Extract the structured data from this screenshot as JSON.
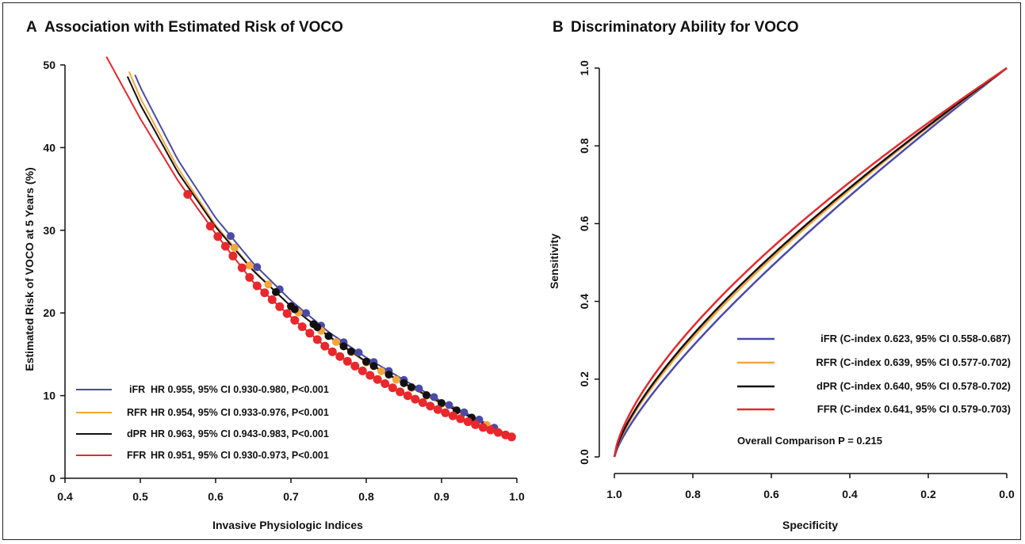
{
  "colors": {
    "iFR": "#4a4aa8",
    "RFR": "#f5a53a",
    "dPR": "#111111",
    "FFR": "#e8282c"
  },
  "chart_data": [
    {
      "type": "line",
      "panel_letter": "A",
      "title": "Association with Estimated Risk of VOCO",
      "xlabel": "Invasive Physiologic Indices",
      "ylabel": "Estimated Risk of VOCO at 5 Years (%)",
      "xlim": [
        0.4,
        1.0
      ],
      "ylim": [
        0,
        50
      ],
      "xticks": [
        "0.4",
        "0.5",
        "0.6",
        "0.7",
        "0.8",
        "0.9",
        "1.0"
      ],
      "yticks": [
        "0",
        "10",
        "20",
        "30",
        "40",
        "50"
      ],
      "legend_position": "bottom-left",
      "series": [
        {
          "name": "iFR",
          "stat": "HR 0.955, 95% CI 0.930-0.980, P<0.001",
          "x": [
            0.493,
            0.5,
            0.55,
            0.6,
            0.65,
            0.7,
            0.75,
            0.8,
            0.85,
            0.9,
            0.95,
            0.993
          ],
          "y": [
            48.8,
            47.3,
            38.5,
            31.5,
            26.0,
            21.5,
            17.7,
            14.6,
            11.9,
            9.3,
            7.1,
            5.0
          ],
          "markers_x": [
            0.62,
            0.655,
            0.685,
            0.72,
            0.74,
            0.77,
            0.79,
            0.81,
            0.83,
            0.85,
            0.87,
            0.89,
            0.91,
            0.93,
            0.95,
            0.97
          ]
        },
        {
          "name": "RFR",
          "stat": "HR 0.954, 95% CI 0.933-0.976, P<0.001",
          "x": [
            0.485,
            0.5,
            0.55,
            0.6,
            0.65,
            0.7,
            0.75,
            0.8,
            0.85,
            0.9,
            0.95,
            0.993
          ],
          "y": [
            49.2,
            46.0,
            37.5,
            30.6,
            25.2,
            20.8,
            17.1,
            14.0,
            11.4,
            9.0,
            6.9,
            5.0
          ],
          "markers_x": [
            0.625,
            0.645,
            0.67,
            0.71,
            0.74,
            0.76,
            0.78,
            0.8,
            0.82,
            0.84,
            0.86,
            0.88,
            0.9,
            0.92,
            0.94,
            0.96
          ]
        },
        {
          "name": "dPR",
          "stat": "HR 0.963, 95% CI 0.943-0.983, P<0.001",
          "x": [
            0.483,
            0.5,
            0.55,
            0.6,
            0.65,
            0.7,
            0.75,
            0.8,
            0.85,
            0.9,
            0.95,
            0.993
          ],
          "y": [
            48.6,
            45.2,
            37.0,
            30.4,
            25.1,
            20.8,
            17.2,
            14.1,
            11.5,
            9.1,
            6.9,
            5.0
          ],
          "markers_x": [
            0.68,
            0.7,
            0.705,
            0.73,
            0.735,
            0.75,
            0.77,
            0.78,
            0.8,
            0.81,
            0.83,
            0.85,
            0.86,
            0.88,
            0.9,
            0.92,
            0.94
          ]
        },
        {
          "name": "FFR",
          "stat": "HR 0.951, 95% CI 0.930-0.973, P<0.001",
          "x": [
            0.455,
            0.5,
            0.55,
            0.6,
            0.65,
            0.7,
            0.75,
            0.8,
            0.85,
            0.9,
            0.95,
            0.993
          ],
          "y": [
            51.0,
            43.5,
            36.0,
            29.6,
            23.7,
            19.5,
            15.6,
            12.7,
            10.2,
            8.1,
            6.3,
            5.0
          ],
          "markers_x": [
            0.563,
            0.593,
            0.603,
            0.613,
            0.623,
            0.635,
            0.645,
            0.655,
            0.665,
            0.675,
            0.685,
            0.695,
            0.705,
            0.715,
            0.725,
            0.735,
            0.745,
            0.755,
            0.765,
            0.775,
            0.785,
            0.795,
            0.805,
            0.815,
            0.825,
            0.835,
            0.845,
            0.855,
            0.865,
            0.875,
            0.885,
            0.895,
            0.905,
            0.915,
            0.925,
            0.935,
            0.945,
            0.955,
            0.965,
            0.975,
            0.985,
            0.993
          ]
        }
      ]
    },
    {
      "type": "line",
      "panel_letter": "B",
      "title": "Discriminatory Ability for VOCO",
      "xlabel": "Specificity",
      "ylabel": "Sensitivity",
      "xlim": [
        1.0,
        0.0
      ],
      "ylim": [
        0.0,
        1.0
      ],
      "xticks": [
        "1.0",
        "0.8",
        "0.6",
        "0.4",
        "0.2",
        "0.0"
      ],
      "yticks": [
        "0.0",
        "0.2",
        "0.4",
        "0.6",
        "0.8",
        "1.0"
      ],
      "legend_position": "bottom-right",
      "series": [
        {
          "name": "iFR (C-index 0.623, 95% CI 0.558-0.687)",
          "exponent": 0.78
        },
        {
          "name": "RFR (C-index 0.639, 95% CI 0.577-0.702)",
          "exponent": 0.735
        },
        {
          "name": "dPR (C-index 0.640, 95% CI 0.578-0.702)",
          "exponent": 0.72
        },
        {
          "name": "FFR (C-index 0.641, 95% CI 0.579-0.703)",
          "exponent": 0.68
        }
      ],
      "annotation": "Overall Comparison P = 0.215"
    }
  ]
}
